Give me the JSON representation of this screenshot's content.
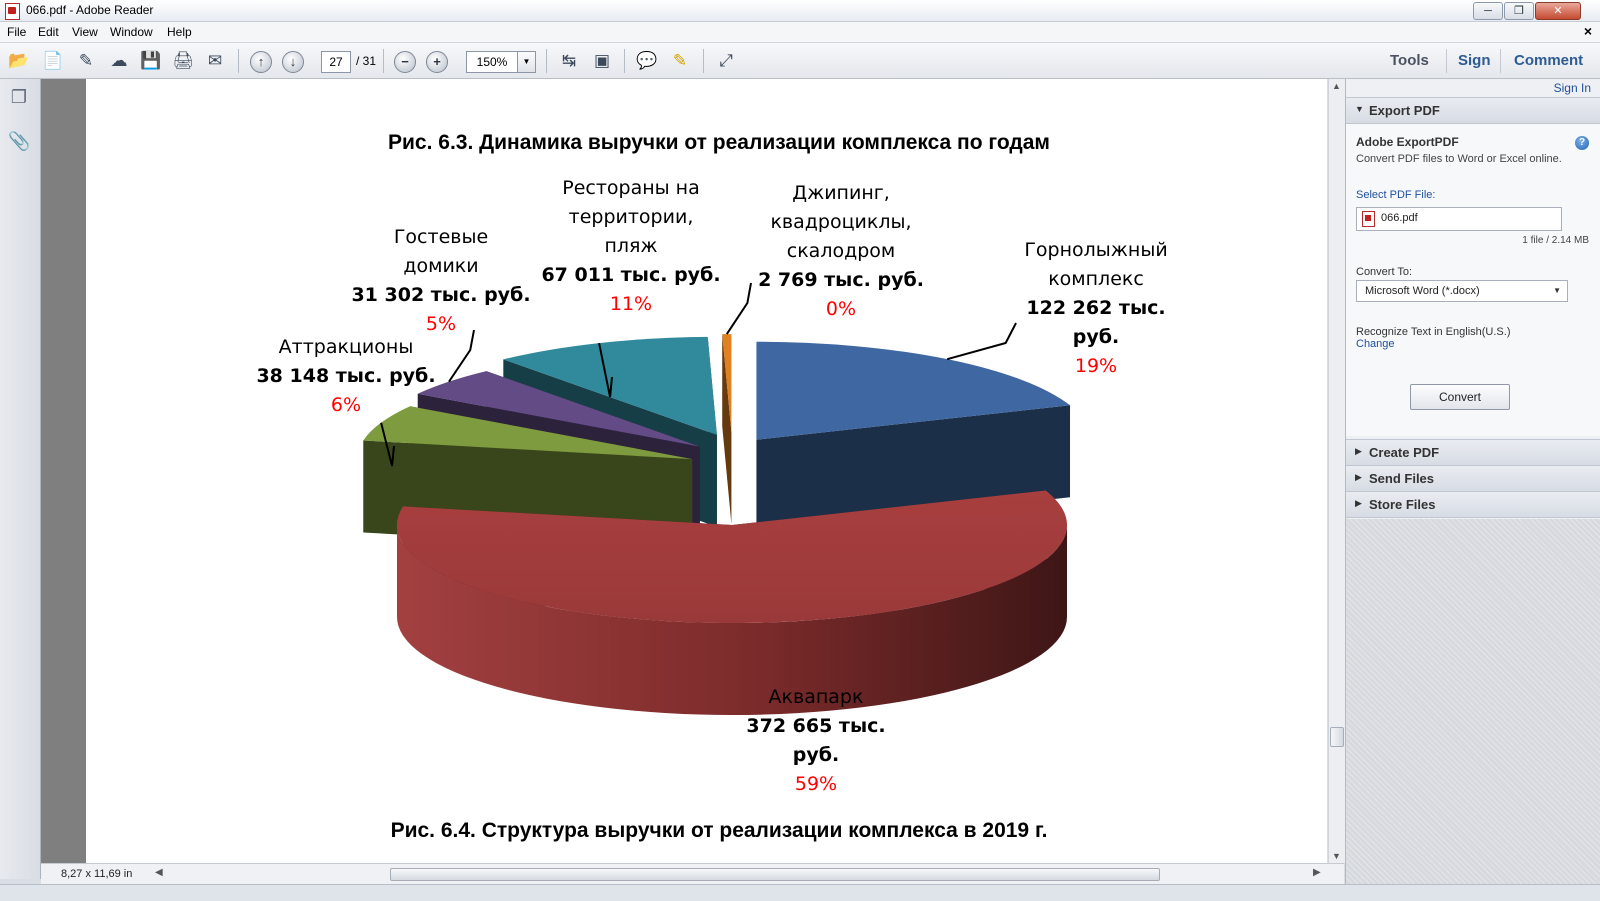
{
  "window": {
    "title": "066.pdf - Adobe Reader",
    "minimize_icon": "minimize-icon",
    "maximize_icon": "restore-icon",
    "close_icon": "close-icon"
  },
  "menu": [
    "File",
    "Edit",
    "View",
    "Window",
    "Help"
  ],
  "toolbar": {
    "page_current": "27",
    "page_total": "/ 31",
    "zoom": "150%",
    "tools_label": "Tools",
    "sign_label": "Sign",
    "comment_label": "Comment"
  },
  "document": {
    "top_caption": "Рис. 6.3. Динамика выручки от реализации комплекса по годам",
    "bottom_caption": "Рис. 6.4. Структура выручки от реализации комплекса в 2019 г.",
    "page_size": "8,27 x 11,69 in"
  },
  "chart_data": {
    "type": "pie",
    "style": "3d-exploded",
    "title": "",
    "slices": [
      {
        "name_lines": [
          "Горнолыжный",
          "комплекс"
        ],
        "value_lines": [
          "122 262  тыс.",
          "руб."
        ],
        "value": 122262,
        "unit": "тыс. руб.",
        "percent": "19%",
        "color": "#3f68a3"
      },
      {
        "name_lines": [
          "Аквапарк"
        ],
        "value_lines": [
          "372 665 тыс.",
          "руб."
        ],
        "value": 372665,
        "unit": "тыс. руб.",
        "percent": "59%",
        "color": "#a33c3c"
      },
      {
        "name_lines": [
          "Аттракционы"
        ],
        "value_lines": [
          "38 148 тыс. руб."
        ],
        "value": 38148,
        "unit": "тыс. руб.",
        "percent": "6%",
        "color": "#7e9b3f"
      },
      {
        "name_lines": [
          "Гостевые",
          "домики"
        ],
        "value_lines": [
          "31 302 тыс. руб."
        ],
        "value": 31302,
        "unit": "тыс. руб.",
        "percent": "5%",
        "color": "#634b86"
      },
      {
        "name_lines": [
          "Рестораны на",
          "территории,",
          "пляж"
        ],
        "value_lines": [
          "67 011  тыс. руб."
        ],
        "value": 67011,
        "unit": "тыс. руб.",
        "percent": "11%",
        "color": "#318a9c"
      },
      {
        "name_lines": [
          "Джипинг,",
          "квадроциклы,",
          "скалодром"
        ],
        "value_lines": [
          "2 769 тыс. руб."
        ],
        "value": 2769,
        "unit": "тыс. руб.",
        "percent": "0%",
        "color": "#e0801f"
      }
    ]
  },
  "export_pane": {
    "sign_in": "Sign In",
    "export_pdf": "Export PDF",
    "service_title": "Adobe ExportPDF",
    "description": "Convert PDF files to Word or Excel online.",
    "select_label": "Select PDF File:",
    "file_name": "066.pdf",
    "file_count": "1 file / 2.14 MB",
    "convert_to_label": "Convert To:",
    "convert_to_value": "Microsoft Word (*.docx)",
    "recognize_text": "Recognize Text in English(U.S.)",
    "change_link": "Change",
    "convert_button": "Convert",
    "create_pdf": "Create PDF",
    "send_files": "Send Files",
    "store_files": "Store Files"
  }
}
